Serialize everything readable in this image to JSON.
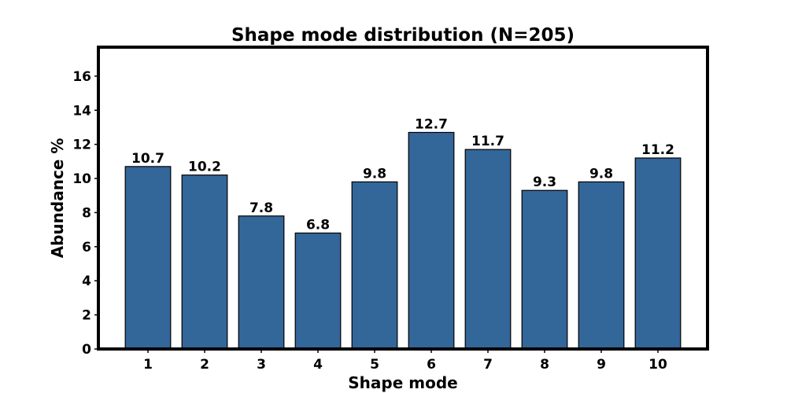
{
  "colors": {
    "bar_fill": "#336699",
    "bar_edge": "#000000",
    "frame": "#000000",
    "background": "#ffffff"
  },
  "chart_data": {
    "type": "bar",
    "title": "Shape mode distribution (N=205)",
    "xlabel": "Shape mode",
    "ylabel": "Abundance %",
    "categories": [
      "1",
      "2",
      "3",
      "4",
      "5",
      "6",
      "7",
      "8",
      "9",
      "10"
    ],
    "values": [
      10.7,
      10.2,
      7.8,
      6.8,
      9.8,
      12.7,
      11.7,
      9.3,
      9.8,
      11.2
    ],
    "data_labels": [
      "10.7",
      "10.2",
      "7.8",
      "6.8",
      "9.8",
      "12.7",
      "11.7",
      "9.3",
      "9.8",
      "11.2"
    ],
    "ylim": [
      0,
      17.7
    ],
    "yticks": [
      0,
      2,
      4,
      6,
      8,
      10,
      12,
      14,
      16
    ],
    "grid": false,
    "legend": "none"
  }
}
